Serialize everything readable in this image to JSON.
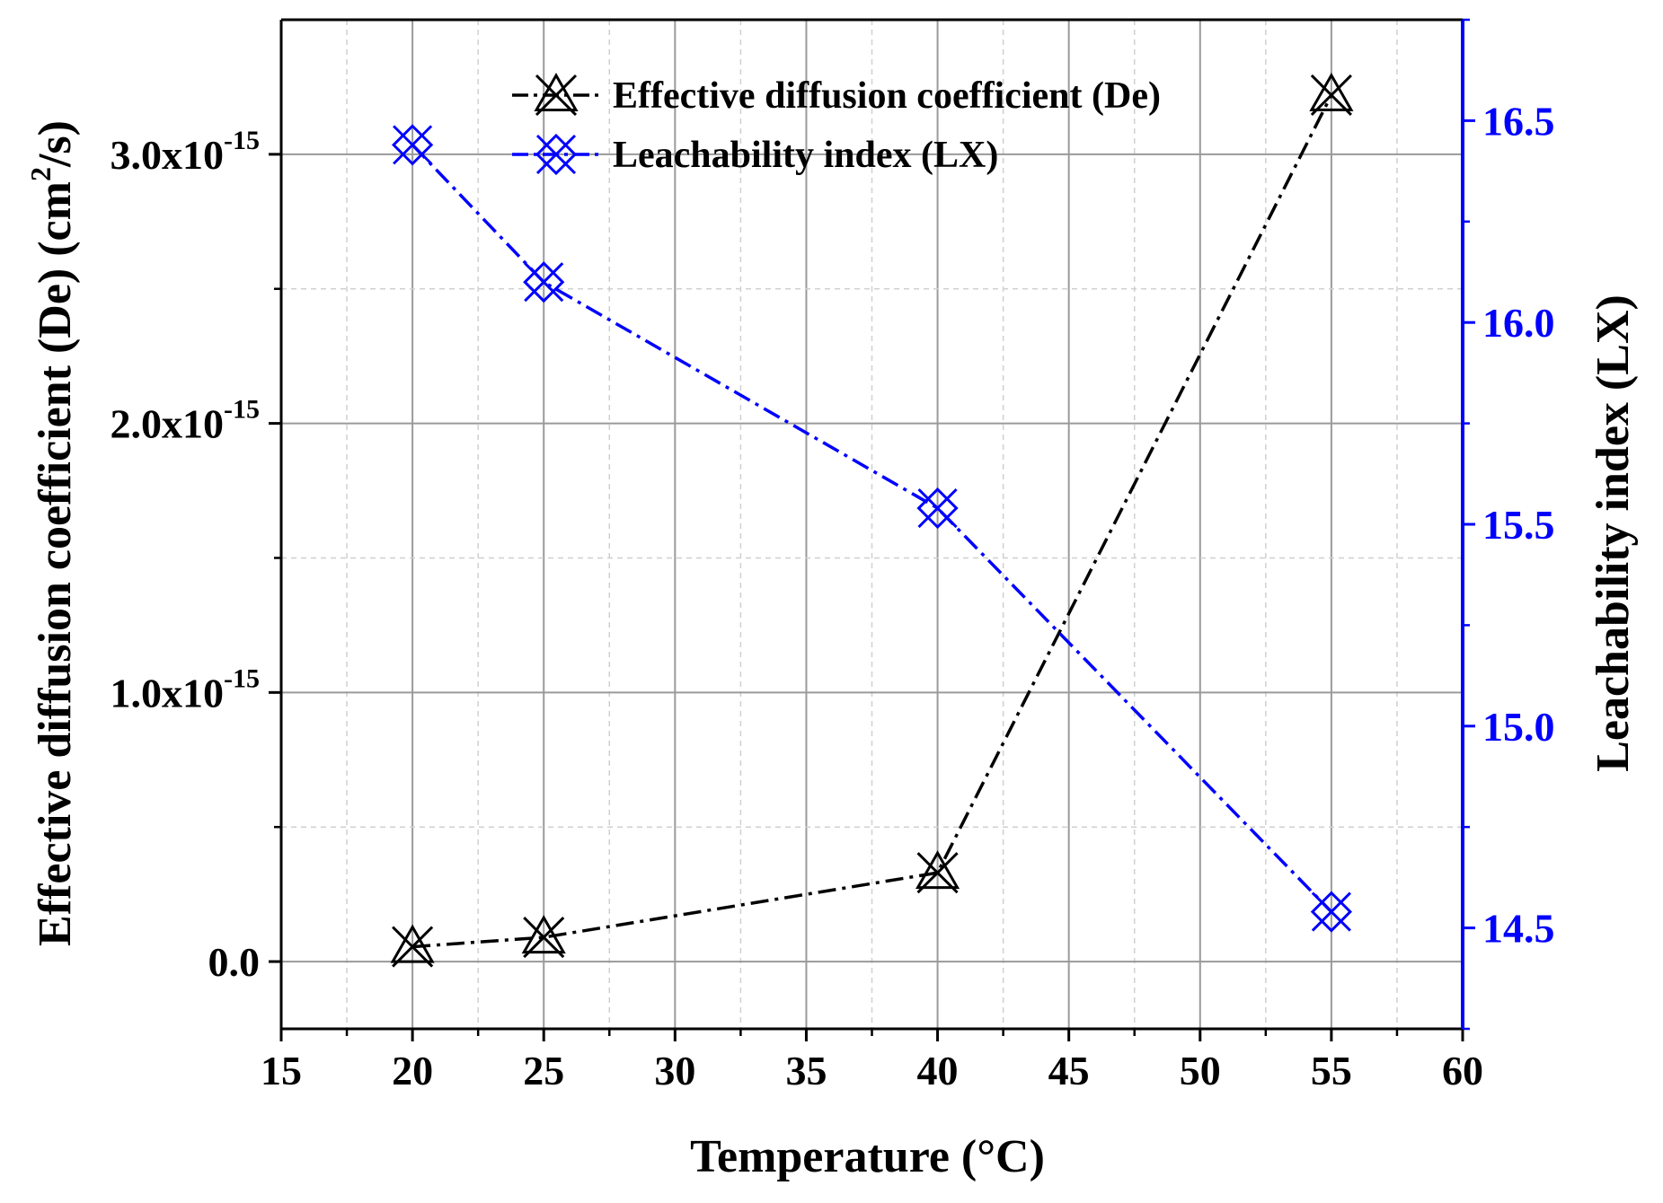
{
  "chart_data": {
    "type": "line",
    "x": [
      20,
      25,
      40,
      55
    ],
    "xlabel": "Temperature (°C)",
    "xlim": [
      15,
      60
    ],
    "xticks": [
      "15",
      "20",
      "25",
      "30",
      "35",
      "40",
      "45",
      "50",
      "55",
      "60"
    ],
    "y_left": {
      "label_main": "Effective diffusion coefficient (De) (cm",
      "label_sup": "2",
      "label_end": "/s)",
      "lim": [
        -2.5e-16,
        3.5e-15
      ],
      "ticks": [
        {
          "value": 0,
          "text": "0.0",
          "exp": ""
        },
        {
          "value": 1e-15,
          "text": "1.0x10",
          "exp": "-15"
        },
        {
          "value": 2e-15,
          "text": "2.0x10",
          "exp": "-15"
        },
        {
          "value": 3e-15,
          "text": "3.0x10",
          "exp": "-15"
        }
      ]
    },
    "y_right": {
      "label": "Leachability index (LX)",
      "lim": [
        14.25,
        16.75
      ],
      "ticks": [
        "14.5",
        "15.0",
        "15.5",
        "16.0",
        "16.5"
      ],
      "color": "#0000ff"
    },
    "series": [
      {
        "name": "Effective diffusion coefficient (De)",
        "axis": "left",
        "color": "#000000",
        "marker": "triangle-x",
        "values": [
          5.5e-17,
          9e-17,
          3.3e-16,
          3.22e-15
        ]
      },
      {
        "name": "Leachability index (LX)",
        "axis": "right",
        "color": "#0000ff",
        "marker": "diamond-x",
        "values": [
          16.44,
          16.1,
          15.54,
          14.54
        ]
      }
    ],
    "grid": true,
    "legend_position": "top-center"
  }
}
